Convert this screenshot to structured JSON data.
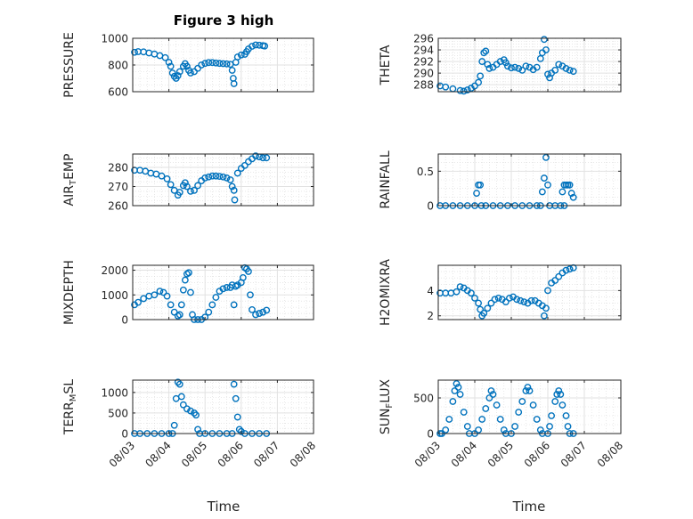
{
  "figure": {
    "title": "Figure 3 high",
    "xlabel": "Time",
    "marker_color": "#0072BD",
    "x_ticks": [
      "08/03",
      "08/04",
      "08/05",
      "08/06",
      "08/07",
      "08/08"
    ]
  },
  "chart_data": [
    {
      "type": "scatter",
      "id": "pressure",
      "ylabel_parts": [
        "PRESSURE"
      ],
      "ylim": [
        600,
        1000
      ],
      "yticks": [
        600,
        800,
        1000
      ],
      "xlim": [
        0,
        5
      ],
      "grid": true,
      "points": [
        [
          0.05,
          895
        ],
        [
          0.15,
          900
        ],
        [
          0.3,
          898
        ],
        [
          0.45,
          890
        ],
        [
          0.6,
          882
        ],
        [
          0.75,
          870
        ],
        [
          0.9,
          855
        ],
        [
          1.0,
          820
        ],
        [
          1.05,
          790
        ],
        [
          1.1,
          740
        ],
        [
          1.15,
          715
        ],
        [
          1.2,
          700
        ],
        [
          1.25,
          720
        ],
        [
          1.3,
          750
        ],
        [
          1.4,
          790
        ],
        [
          1.45,
          810
        ],
        [
          1.5,
          790
        ],
        [
          1.55,
          760
        ],
        [
          1.6,
          740
        ],
        [
          1.7,
          750
        ],
        [
          1.8,
          775
        ],
        [
          1.9,
          800
        ],
        [
          2.0,
          812
        ],
        [
          2.1,
          818
        ],
        [
          2.2,
          818
        ],
        [
          2.3,
          815
        ],
        [
          2.4,
          812
        ],
        [
          2.5,
          810
        ],
        [
          2.6,
          808
        ],
        [
          2.7,
          805
        ],
        [
          2.75,
          760
        ],
        [
          2.78,
          700
        ],
        [
          2.8,
          660
        ],
        [
          2.85,
          820
        ],
        [
          2.9,
          860
        ],
        [
          3.0,
          875
        ],
        [
          3.1,
          880
        ],
        [
          3.15,
          900
        ],
        [
          3.2,
          920
        ],
        [
          3.3,
          940
        ],
        [
          3.4,
          950
        ],
        [
          3.5,
          948
        ],
        [
          3.6,
          945
        ],
        [
          3.65,
          942
        ]
      ]
    },
    {
      "type": "scatter",
      "id": "theta",
      "ylabel_parts": [
        "THETA"
      ],
      "ylim": [
        286.8,
        296
      ],
      "yticks": [
        288,
        290,
        292,
        294,
        296
      ],
      "xlim": [
        0,
        5
      ],
      "grid": true,
      "points": [
        [
          0.05,
          287.8
        ],
        [
          0.2,
          287.6
        ],
        [
          0.4,
          287.3
        ],
        [
          0.6,
          287.0
        ],
        [
          0.7,
          286.9
        ],
        [
          0.8,
          287.1
        ],
        [
          0.9,
          287.4
        ],
        [
          1.0,
          287.8
        ],
        [
          1.1,
          288.4
        ],
        [
          1.15,
          289.5
        ],
        [
          1.2,
          292.0
        ],
        [
          1.25,
          293.5
        ],
        [
          1.3,
          293.8
        ],
        [
          1.35,
          291.5
        ],
        [
          1.4,
          290.8
        ],
        [
          1.5,
          291.0
        ],
        [
          1.6,
          291.5
        ],
        [
          1.7,
          292.0
        ],
        [
          1.8,
          292.3
        ],
        [
          1.85,
          291.8
        ],
        [
          1.9,
          291.2
        ],
        [
          2.0,
          290.9
        ],
        [
          2.1,
          291.0
        ],
        [
          2.2,
          290.8
        ],
        [
          2.3,
          290.5
        ],
        [
          2.4,
          291.2
        ],
        [
          2.5,
          291.0
        ],
        [
          2.6,
          290.6
        ],
        [
          2.7,
          291.0
        ],
        [
          2.8,
          292.5
        ],
        [
          2.85,
          293.5
        ],
        [
          2.9,
          295.8
        ],
        [
          2.95,
          294.0
        ],
        [
          3.0,
          289.8
        ],
        [
          3.05,
          289.2
        ],
        [
          3.1,
          290.0
        ],
        [
          3.2,
          290.5
        ],
        [
          3.3,
          291.5
        ],
        [
          3.4,
          291.2
        ],
        [
          3.5,
          290.8
        ],
        [
          3.6,
          290.5
        ],
        [
          3.7,
          290.3
        ]
      ]
    },
    {
      "type": "scatter",
      "id": "air_temp",
      "ylabel_parts": [
        "AIR",
        "T",
        "EMP"
      ],
      "ylim": [
        260,
        287
      ],
      "yticks": [
        260,
        270,
        280
      ],
      "xlim": [
        0,
        5
      ],
      "grid": true,
      "points": [
        [
          0.05,
          278.5
        ],
        [
          0.2,
          278.5
        ],
        [
          0.35,
          278
        ],
        [
          0.5,
          277
        ],
        [
          0.65,
          276.5
        ],
        [
          0.8,
          275.5
        ],
        [
          0.95,
          274
        ],
        [
          1.05,
          271
        ],
        [
          1.15,
          268
        ],
        [
          1.25,
          265.5
        ],
        [
          1.3,
          267
        ],
        [
          1.4,
          270.5
        ],
        [
          1.45,
          272
        ],
        [
          1.5,
          270
        ],
        [
          1.6,
          267.5
        ],
        [
          1.7,
          268
        ],
        [
          1.8,
          270.5
        ],
        [
          1.9,
          273
        ],
        [
          2.0,
          274.5
        ],
        [
          2.1,
          275
        ],
        [
          2.2,
          275.5
        ],
        [
          2.3,
          275.5
        ],
        [
          2.4,
          275.3
        ],
        [
          2.5,
          275
        ],
        [
          2.6,
          274.5
        ],
        [
          2.7,
          273.5
        ],
        [
          2.75,
          270
        ],
        [
          2.8,
          268
        ],
        [
          2.82,
          263
        ],
        [
          2.9,
          277
        ],
        [
          3.0,
          279.5
        ],
        [
          3.1,
          281
        ],
        [
          3.2,
          283
        ],
        [
          3.3,
          284.5
        ],
        [
          3.4,
          286
        ],
        [
          3.5,
          285.5
        ],
        [
          3.6,
          285
        ],
        [
          3.7,
          285
        ]
      ]
    },
    {
      "type": "scatter",
      "id": "rainfall",
      "ylabel_parts": [
        "RAINFALL"
      ],
      "ylim": [
        0,
        0.75
      ],
      "yticks": [
        0,
        0.5
      ],
      "xlim": [
        0,
        5
      ],
      "grid": true,
      "points": [
        [
          0.05,
          0
        ],
        [
          0.2,
          0
        ],
        [
          0.4,
          0
        ],
        [
          0.6,
          0
        ],
        [
          0.8,
          0
        ],
        [
          1.0,
          0
        ],
        [
          1.05,
          0.18
        ],
        [
          1.1,
          0.3
        ],
        [
          1.15,
          0.3
        ],
        [
          1.18,
          0
        ],
        [
          1.3,
          0
        ],
        [
          1.5,
          0
        ],
        [
          1.7,
          0
        ],
        [
          1.9,
          0
        ],
        [
          2.1,
          0
        ],
        [
          2.3,
          0
        ],
        [
          2.5,
          0
        ],
        [
          2.7,
          0
        ],
        [
          2.8,
          0
        ],
        [
          2.85,
          0.2
        ],
        [
          2.9,
          0.4
        ],
        [
          2.95,
          0.7
        ],
        [
          3.0,
          0.3
        ],
        [
          3.05,
          0
        ],
        [
          3.2,
          0
        ],
        [
          3.35,
          0
        ],
        [
          3.4,
          0.2
        ],
        [
          3.45,
          0.3
        ],
        [
          3.5,
          0.3
        ],
        [
          3.55,
          0.3
        ],
        [
          3.6,
          0.3
        ],
        [
          3.65,
          0.18
        ],
        [
          3.7,
          0.12
        ],
        [
          3.45,
          0
        ]
      ]
    },
    {
      "type": "scatter",
      "id": "mixdepth",
      "ylabel_parts": [
        "MIXDEPTH"
      ],
      "ylim": [
        0,
        2200
      ],
      "yticks": [
        0,
        1000,
        2000
      ],
      "xlim": [
        0,
        5
      ],
      "grid": true,
      "points": [
        [
          0.05,
          600
        ],
        [
          0.15,
          700
        ],
        [
          0.3,
          850
        ],
        [
          0.45,
          950
        ],
        [
          0.6,
          1000
        ],
        [
          0.75,
          1150
        ],
        [
          0.85,
          1100
        ],
        [
          0.95,
          950
        ],
        [
          1.05,
          600
        ],
        [
          1.15,
          300
        ],
        [
          1.25,
          150
        ],
        [
          1.3,
          200
        ],
        [
          1.35,
          600
        ],
        [
          1.4,
          1200
        ],
        [
          1.45,
          1600
        ],
        [
          1.5,
          1850
        ],
        [
          1.55,
          1900
        ],
        [
          1.6,
          1100
        ],
        [
          1.65,
          200
        ],
        [
          1.7,
          0
        ],
        [
          1.8,
          0
        ],
        [
          1.9,
          0
        ],
        [
          2.0,
          100
        ],
        [
          2.1,
          300
        ],
        [
          2.2,
          600
        ],
        [
          2.3,
          900
        ],
        [
          2.4,
          1150
        ],
        [
          2.5,
          1250
        ],
        [
          2.6,
          1300
        ],
        [
          2.7,
          1300
        ],
        [
          2.75,
          1400
        ],
        [
          2.8,
          600
        ],
        [
          2.85,
          1350
        ],
        [
          2.9,
          1400
        ],
        [
          3.0,
          1500
        ],
        [
          3.05,
          1700
        ],
        [
          3.1,
          2100
        ],
        [
          3.15,
          2050
        ],
        [
          3.2,
          1950
        ],
        [
          3.25,
          1000
        ],
        [
          3.3,
          400
        ],
        [
          3.4,
          200
        ],
        [
          3.5,
          250
        ],
        [
          3.6,
          300
        ],
        [
          3.7,
          380
        ]
      ]
    },
    {
      "type": "scatter",
      "id": "h2omixra",
      "ylabel_parts": [
        "H2OMIXRA"
      ],
      "ylim": [
        1.7,
        6
      ],
      "yticks": [
        2,
        4
      ],
      "xlim": [
        0,
        5
      ],
      "grid": true,
      "points": [
        [
          0.05,
          3.8
        ],
        [
          0.2,
          3.8
        ],
        [
          0.35,
          3.8
        ],
        [
          0.5,
          3.9
        ],
        [
          0.6,
          4.3
        ],
        [
          0.7,
          4.2
        ],
        [
          0.8,
          4.0
        ],
        [
          0.9,
          3.8
        ],
        [
          1.0,
          3.4
        ],
        [
          1.1,
          3.0
        ],
        [
          1.15,
          2.5
        ],
        [
          1.2,
          2.0
        ],
        [
          1.25,
          2.2
        ],
        [
          1.35,
          2.6
        ],
        [
          1.45,
          3.0
        ],
        [
          1.55,
          3.3
        ],
        [
          1.65,
          3.4
        ],
        [
          1.75,
          3.3
        ],
        [
          1.85,
          3.1
        ],
        [
          1.95,
          3.4
        ],
        [
          2.05,
          3.5
        ],
        [
          2.15,
          3.3
        ],
        [
          2.25,
          3.2
        ],
        [
          2.35,
          3.1
        ],
        [
          2.45,
          3.0
        ],
        [
          2.55,
          3.2
        ],
        [
          2.65,
          3.2
        ],
        [
          2.75,
          3.0
        ],
        [
          2.85,
          2.8
        ],
        [
          2.9,
          2.0
        ],
        [
          2.95,
          2.6
        ],
        [
          3.0,
          4.0
        ],
        [
          3.1,
          4.6
        ],
        [
          3.2,
          4.8
        ],
        [
          3.3,
          5.1
        ],
        [
          3.4,
          5.4
        ],
        [
          3.5,
          5.6
        ],
        [
          3.6,
          5.7
        ],
        [
          3.7,
          5.8
        ]
      ]
    },
    {
      "type": "scatter",
      "id": "terr_msl",
      "ylabel_parts": [
        "TERR",
        "M",
        "SL"
      ],
      "ylim": [
        0,
        1300
      ],
      "yticks": [
        0,
        500,
        1000
      ],
      "xlim": [
        0,
        5
      ],
      "grid": true,
      "points": [
        [
          0.05,
          0
        ],
        [
          0.2,
          0
        ],
        [
          0.4,
          0
        ],
        [
          0.6,
          0
        ],
        [
          0.8,
          0
        ],
        [
          1.0,
          0
        ],
        [
          1.1,
          0
        ],
        [
          1.15,
          200
        ],
        [
          1.2,
          850
        ],
        [
          1.25,
          1250
        ],
        [
          1.3,
          1200
        ],
        [
          1.35,
          900
        ],
        [
          1.4,
          700
        ],
        [
          1.5,
          600
        ],
        [
          1.6,
          550
        ],
        [
          1.7,
          500
        ],
        [
          1.75,
          450
        ],
        [
          1.8,
          100
        ],
        [
          1.85,
          0
        ],
        [
          2.0,
          0
        ],
        [
          2.2,
          0
        ],
        [
          2.4,
          0
        ],
        [
          2.6,
          0
        ],
        [
          2.75,
          0
        ],
        [
          2.8,
          1200
        ],
        [
          2.85,
          850
        ],
        [
          2.9,
          400
        ],
        [
          2.95,
          100
        ],
        [
          3.0,
          50
        ],
        [
          3.1,
          0
        ],
        [
          3.3,
          0
        ],
        [
          3.5,
          0
        ],
        [
          3.7,
          0
        ]
      ]
    },
    {
      "type": "scatter",
      "id": "sun_flux",
      "ylabel_parts": [
        "SUN",
        "F",
        "LUX"
      ],
      "ylim": [
        0,
        750
      ],
      "yticks": [
        0,
        500
      ],
      "xlim": [
        0,
        5
      ],
      "grid": true,
      "points": [
        [
          0.05,
          0
        ],
        [
          0.1,
          0
        ],
        [
          0.2,
          50
        ],
        [
          0.3,
          200
        ],
        [
          0.4,
          450
        ],
        [
          0.45,
          600
        ],
        [
          0.5,
          700
        ],
        [
          0.55,
          650
        ],
        [
          0.6,
          550
        ],
        [
          0.7,
          300
        ],
        [
          0.8,
          100
        ],
        [
          0.85,
          0
        ],
        [
          1.0,
          0
        ],
        [
          1.1,
          50
        ],
        [
          1.2,
          200
        ],
        [
          1.3,
          350
        ],
        [
          1.4,
          500
        ],
        [
          1.45,
          600
        ],
        [
          1.5,
          550
        ],
        [
          1.6,
          400
        ],
        [
          1.7,
          200
        ],
        [
          1.8,
          50
        ],
        [
          1.85,
          0
        ],
        [
          2.0,
          0
        ],
        [
          2.1,
          100
        ],
        [
          2.2,
          300
        ],
        [
          2.3,
          450
        ],
        [
          2.4,
          600
        ],
        [
          2.45,
          650
        ],
        [
          2.5,
          600
        ],
        [
          2.6,
          400
        ],
        [
          2.7,
          200
        ],
        [
          2.8,
          50
        ],
        [
          2.85,
          0
        ],
        [
          3.0,
          0
        ],
        [
          3.05,
          100
        ],
        [
          3.1,
          250
        ],
        [
          3.2,
          450
        ],
        [
          3.25,
          550
        ],
        [
          3.3,
          600
        ],
        [
          3.35,
          550
        ],
        [
          3.4,
          400
        ],
        [
          3.5,
          250
        ],
        [
          3.55,
          100
        ],
        [
          3.6,
          0
        ],
        [
          3.7,
          0
        ]
      ]
    }
  ]
}
